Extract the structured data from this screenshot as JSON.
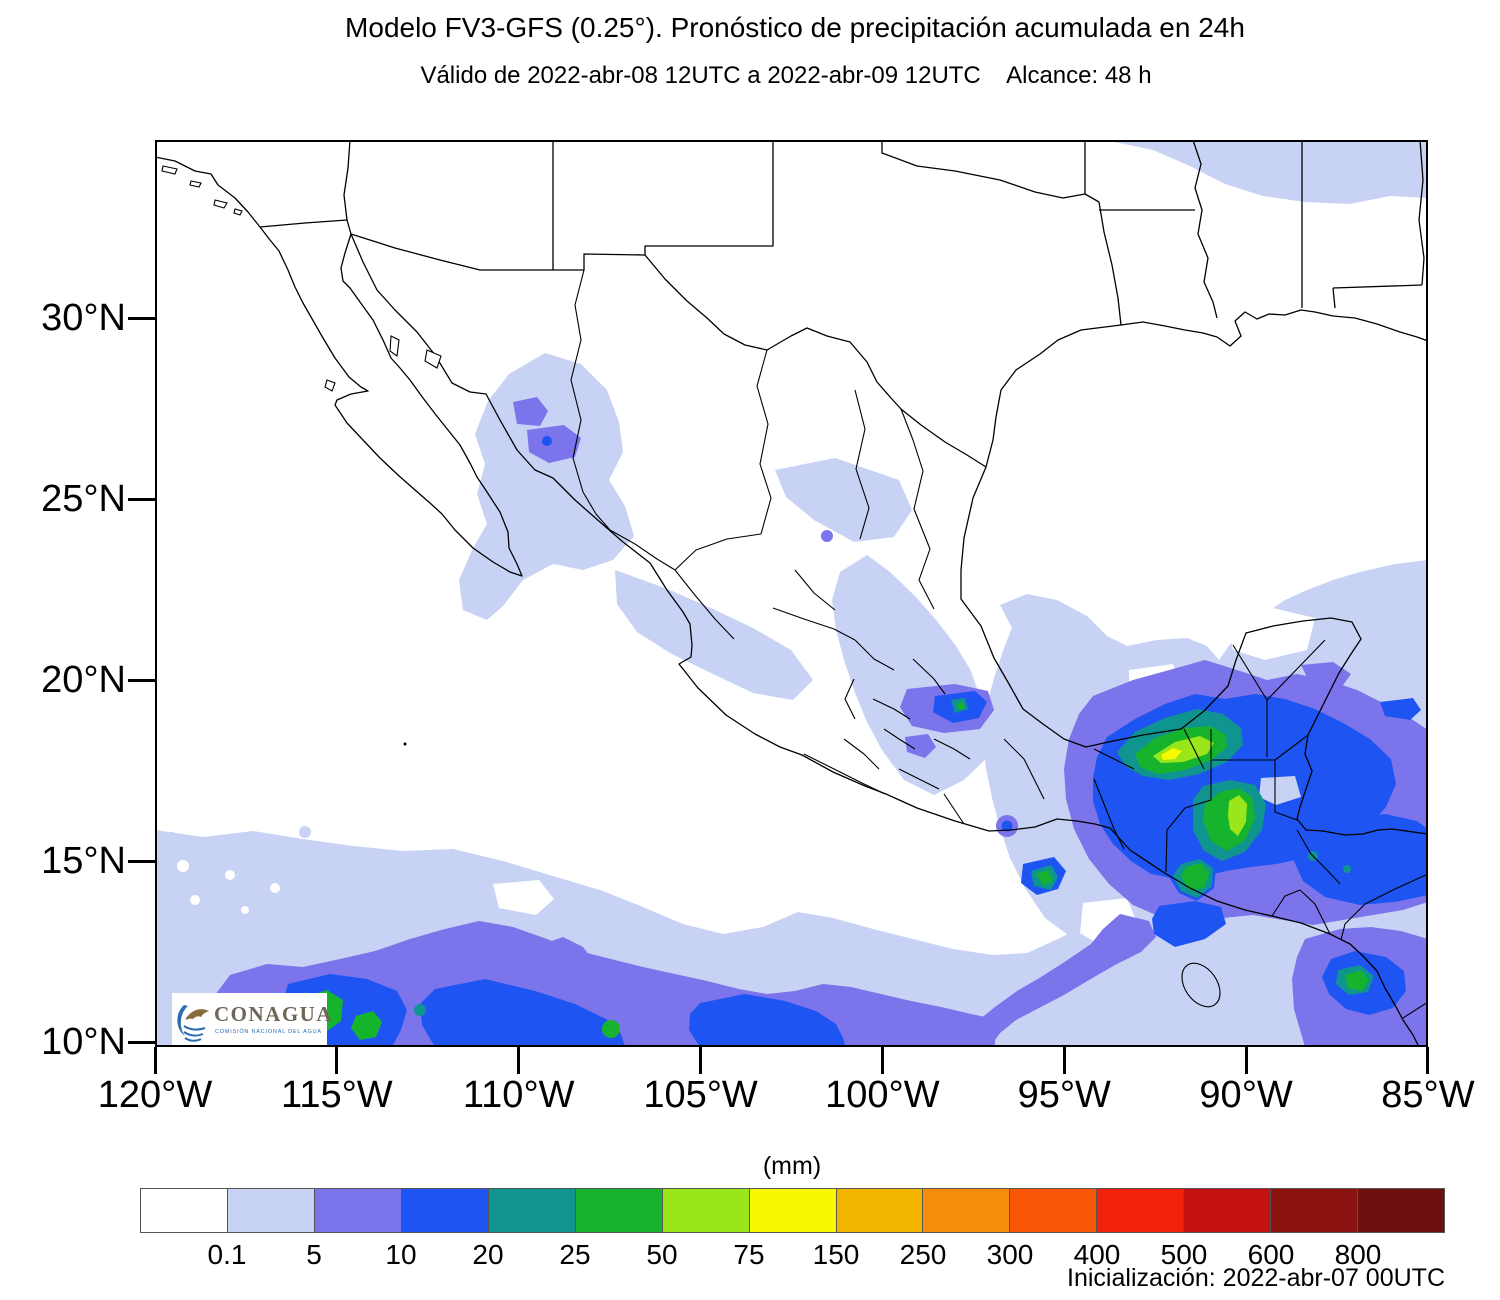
{
  "title": "Modelo FV3-GFS (0.25°). Pronóstico de precipitación acumulada en 24h",
  "subtitle": "Válido de 2022-abr-08 12UTC a 2022-abr-09 12UTC    Alcance: 48 h",
  "map": {
    "lat_ticks": {
      "labels": [
        "30°N",
        "25°N",
        "20°N",
        "15°N",
        "10°N"
      ],
      "values": [
        30,
        25,
        20,
        15,
        10
      ]
    },
    "lon_ticks": {
      "labels": [
        "120°W",
        "115°W",
        "110°W",
        "105°W",
        "100°W",
        "95°W",
        "90°W",
        "85°W"
      ],
      "values": [
        120,
        115,
        110,
        105,
        100,
        95,
        90,
        85
      ]
    }
  },
  "colorbar": {
    "unit_label": "(mm)",
    "tick_labels": [
      "0.1",
      "5",
      "10",
      "20",
      "25",
      "50",
      "75",
      "150",
      "250",
      "300",
      "400",
      "500",
      "600",
      "800"
    ],
    "colors": [
      "#ffffff",
      "#c8d2f4",
      "#7b74ea",
      "#1e55f2",
      "#0f9490",
      "#16b42c",
      "#99e61a",
      "#f8f800",
      "#f2b400",
      "#f58c0c",
      "#f85506",
      "#f2230a",
      "#c41210",
      "#8c1210",
      "#6e0f10"
    ]
  },
  "logo": {
    "name": "CONAGUA",
    "tagline": "COMISIÓN NACIONAL DEL AGUA"
  },
  "footer": {
    "initialization": "Inicialización: 2022-abr-07 00UTC"
  }
}
